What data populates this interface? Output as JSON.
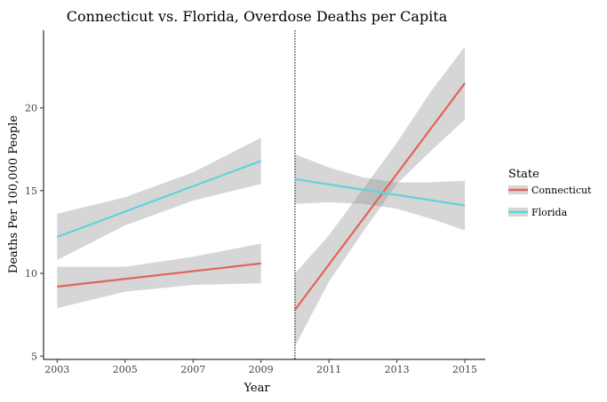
{
  "chart_data": {
    "type": "line",
    "title": "Connecticut vs. Florida, Overdose Deaths per Capita",
    "xlabel": "Year",
    "ylabel": "Deaths Per 100,000 People",
    "xlim": [
      2002.6,
      2015.6
    ],
    "ylim": [
      4.8,
      24.7
    ],
    "x_ticks": [
      2003,
      2005,
      2007,
      2009,
      2011,
      2013,
      2015
    ],
    "y_ticks": [
      5,
      10,
      15,
      20
    ],
    "x_tick_labels": [
      "2003",
      "2005",
      "2007",
      "2009",
      "2011",
      "2013",
      "2015"
    ],
    "y_tick_labels": [
      "5",
      "10",
      "15",
      "20"
    ],
    "vline": {
      "x": 2010,
      "style": "dotted"
    },
    "grid": false,
    "legend": {
      "title": "State",
      "position": "right",
      "entries": [
        "Connecticut",
        "Florida"
      ]
    },
    "series": [
      {
        "name": "Connecticut",
        "color": "#e0645b",
        "segments": [
          {
            "x": [
              2003,
              2009
            ],
            "y": [
              9.2,
              10.6
            ],
            "band_x": [
              2003,
              2005,
              2007,
              2009
            ],
            "band_lower": [
              7.9,
              8.9,
              9.3,
              9.4
            ],
            "band_upper": [
              10.4,
              10.4,
              11.0,
              11.8
            ]
          },
          {
            "x": [
              2010,
              2015
            ],
            "y": [
              7.8,
              21.5
            ],
            "band_x": [
              2010,
              2011,
              2012,
              2013,
              2014,
              2015
            ],
            "band_lower": [
              5.6,
              9.5,
              12.5,
              15.4,
              17.4,
              19.3
            ],
            "band_upper": [
              10.0,
              12.3,
              15.1,
              17.9,
              21.0,
              23.7
            ]
          }
        ]
      },
      {
        "name": "Florida",
        "color": "#5dd5db",
        "segments": [
          {
            "x": [
              2003,
              2009
            ],
            "y": [
              12.2,
              16.8
            ],
            "band_x": [
              2003,
              2005,
              2007,
              2009
            ],
            "band_lower": [
              10.8,
              12.9,
              14.4,
              15.4
            ],
            "band_upper": [
              13.6,
              14.6,
              16.1,
              18.2
            ]
          },
          {
            "x": [
              2010,
              2015
            ],
            "y": [
              15.7,
              14.1
            ],
            "band_x": [
              2010,
              2011,
              2012,
              2013,
              2014,
              2015
            ],
            "band_lower": [
              14.2,
              14.3,
              14.2,
              13.9,
              13.3,
              12.6
            ],
            "band_upper": [
              17.2,
              16.4,
              15.8,
              15.5,
              15.5,
              15.6
            ]
          }
        ]
      }
    ]
  }
}
